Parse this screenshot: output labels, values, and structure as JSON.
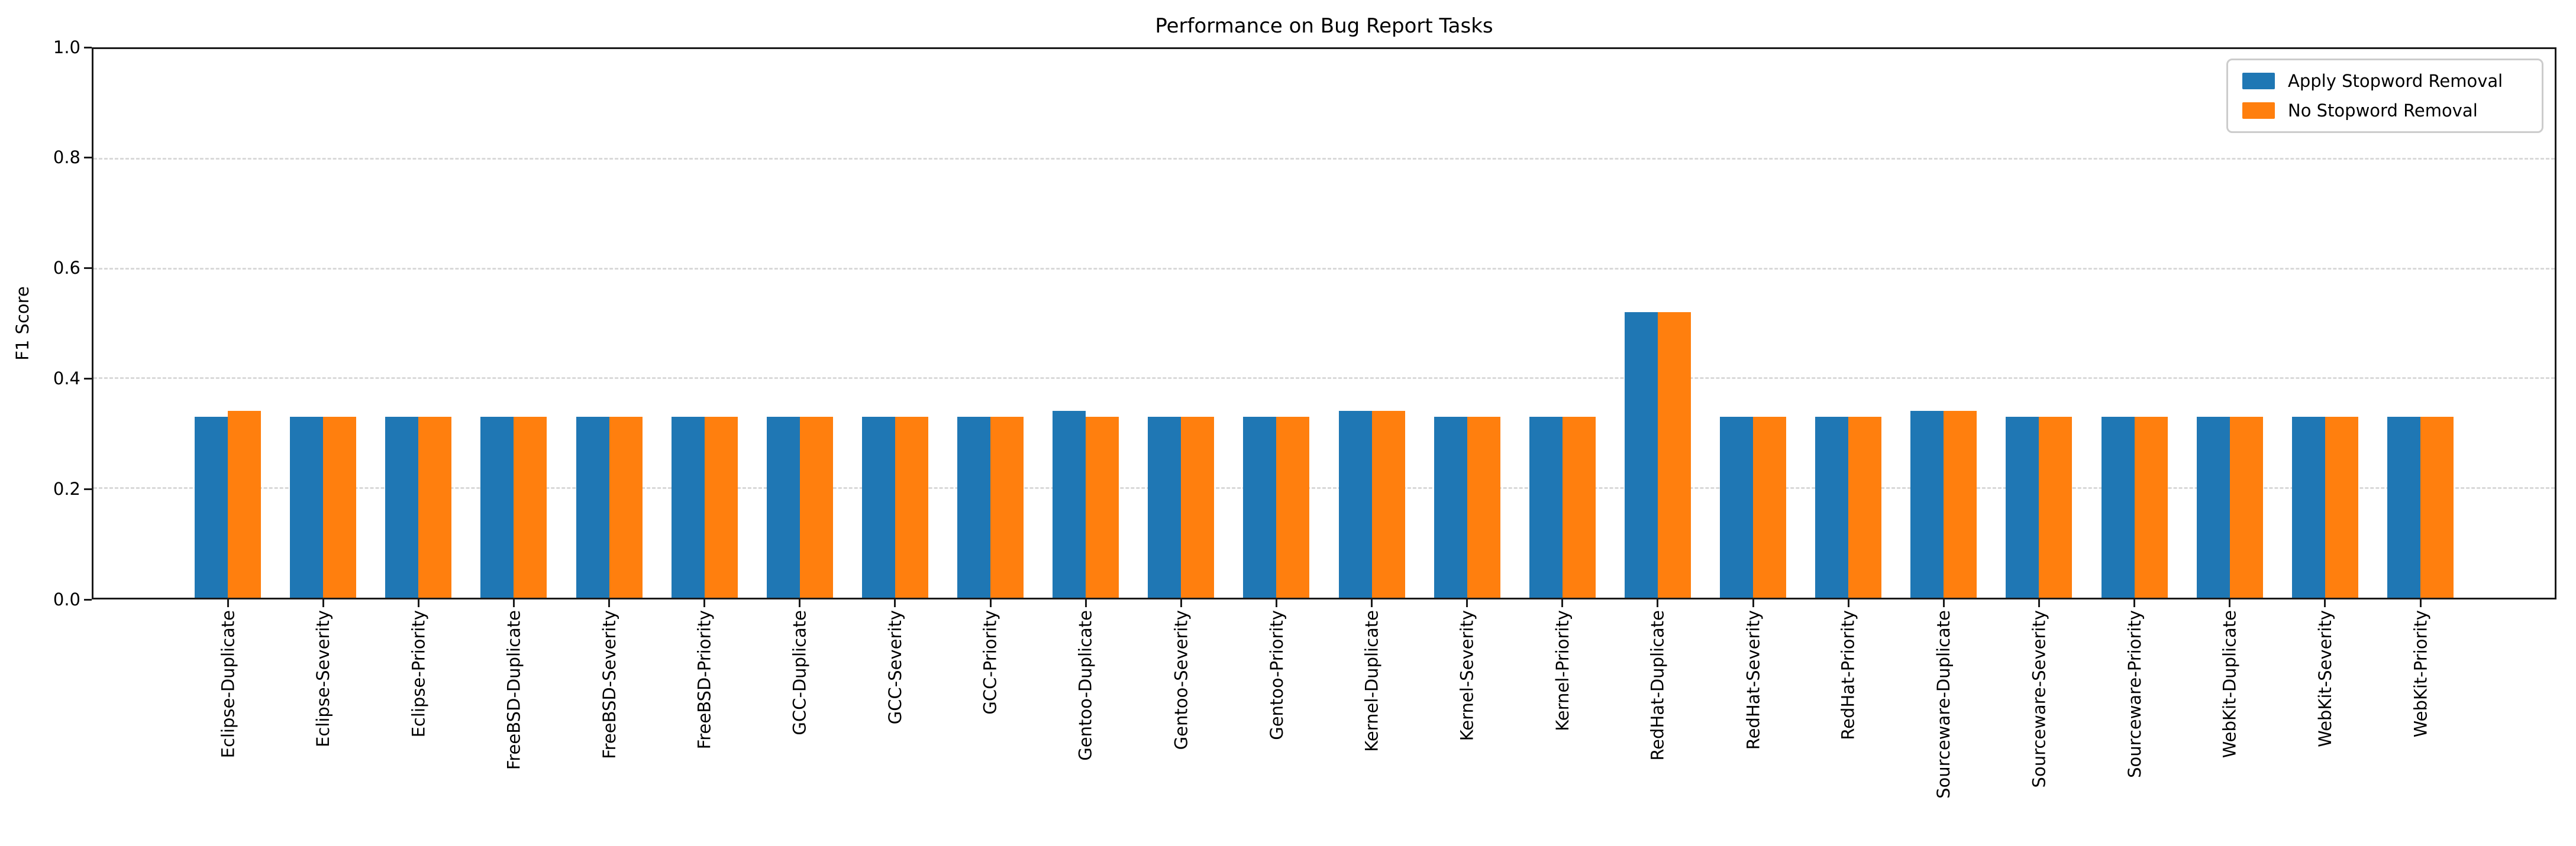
{
  "chart_data": {
    "type": "bar",
    "title": "Performance on Bug Report Tasks",
    "ylabel": "F1 Score",
    "xlabel": "",
    "ylim": [
      0.0,
      1.0
    ],
    "yticks": [
      0.0,
      0.2,
      0.4,
      0.6,
      0.8,
      1.0
    ],
    "grid": {
      "axis": "y",
      "style": "dashed",
      "color": "#d9d9d9",
      "at": [
        0.2,
        0.4,
        0.6,
        0.8
      ]
    },
    "legend_position": "upper-right",
    "categories": [
      "Eclipse-Duplicate",
      "Eclipse-Severity",
      "Eclipse-Priority",
      "FreeBSD-Duplicate",
      "FreeBSD-Severity",
      "FreeBSD-Priority",
      "GCC-Duplicate",
      "GCC-Severity",
      "GCC-Priority",
      "Gentoo-Duplicate",
      "Gentoo-Severity",
      "Gentoo-Priority",
      "Kernel-Duplicate",
      "Kernel-Severity",
      "Kernel-Priority",
      "RedHat-Duplicate",
      "RedHat-Severity",
      "RedHat-Priority",
      "Sourceware-Duplicate",
      "Sourceware-Severity",
      "Sourceware-Priority",
      "WebKit-Duplicate",
      "WebKit-Severity",
      "WebKit-Priority"
    ],
    "series": [
      {
        "name": "Apply Stopword Removal",
        "color": "#1f77b4",
        "values": [
          0.33,
          0.33,
          0.33,
          0.33,
          0.33,
          0.33,
          0.33,
          0.33,
          0.33,
          0.34,
          0.33,
          0.33,
          0.34,
          0.33,
          0.33,
          0.52,
          0.33,
          0.33,
          0.34,
          0.33,
          0.33,
          0.33,
          0.33,
          0.33
        ]
      },
      {
        "name": "No Stopword Removal",
        "color": "#ff7f0e",
        "values": [
          0.34,
          0.33,
          0.33,
          0.33,
          0.33,
          0.33,
          0.33,
          0.33,
          0.33,
          0.33,
          0.33,
          0.33,
          0.34,
          0.33,
          0.33,
          0.52,
          0.33,
          0.33,
          0.34,
          0.33,
          0.33,
          0.33,
          0.33,
          0.33
        ]
      }
    ]
  },
  "colors": {
    "spine": "#1a1a1a",
    "grid": "#d9d9d9",
    "background": "#ffffff",
    "series_blue": "#1f77b4",
    "series_orange": "#ff7f0e",
    "legend_border": "#cccccc"
  }
}
